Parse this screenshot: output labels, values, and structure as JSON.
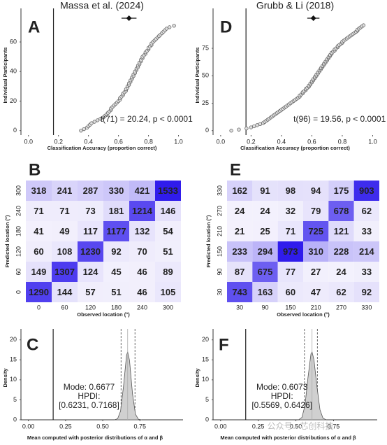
{
  "chart_data": [
    {
      "type": "scatter",
      "title": "Massa et al. (2024)",
      "panel": "A",
      "x_label": "Classification Accuracy (proportion correct)",
      "y_label": "Individual Participants",
      "annotation": "t(71) = 20.24, p < 0.0001",
      "x": [
        0.35,
        0.37,
        0.39,
        0.4,
        0.41,
        0.42,
        0.44,
        0.46,
        0.48,
        0.5,
        0.51,
        0.52,
        0.53,
        0.54,
        0.55,
        0.55,
        0.56,
        0.57,
        0.58,
        0.59,
        0.6,
        0.61,
        0.61,
        0.62,
        0.63,
        0.63,
        0.64,
        0.65,
        0.65,
        0.66,
        0.66,
        0.67,
        0.67,
        0.68,
        0.68,
        0.69,
        0.69,
        0.7,
        0.7,
        0.71,
        0.71,
        0.72,
        0.72,
        0.73,
        0.73,
        0.74,
        0.74,
        0.75,
        0.75,
        0.76,
        0.76,
        0.77,
        0.78,
        0.78,
        0.79,
        0.8,
        0.8,
        0.81,
        0.82,
        0.82,
        0.83,
        0.84,
        0.85,
        0.86,
        0.87,
        0.88,
        0.89,
        0.9,
        0.91,
        0.92,
        0.94,
        0.97
      ],
      "values": [
        0,
        1,
        2,
        3,
        4,
        5,
        6,
        7,
        8,
        9,
        10,
        11,
        12,
        13,
        14,
        15,
        16,
        17,
        18,
        19,
        20,
        21,
        22,
        23,
        24,
        25,
        26,
        27,
        28,
        29,
        30,
        31,
        32,
        33,
        34,
        35,
        36,
        37,
        38,
        39,
        40,
        41,
        42,
        43,
        44,
        45,
        46,
        47,
        48,
        49,
        50,
        51,
        52,
        53,
        54,
        55,
        56,
        57,
        58,
        59,
        60,
        61,
        62,
        63,
        64,
        65,
        66,
        67,
        68,
        69,
        70,
        71
      ],
      "mean": 0.67,
      "mean_error": 0.05,
      "chance": 0.1667,
      "xlim": [
        -0.05,
        1.03
      ],
      "ylim": [
        -3,
        78
      ],
      "xticks": [
        {
          "value": 0,
          "label": "0.0"
        },
        0.2,
        0.4,
        0.6,
        0.8,
        {
          "value": 1,
          "label": "1.0"
        }
      ],
      "yticks": [
        0,
        20,
        40,
        60
      ]
    },
    {
      "type": "scatter",
      "title": "Grubb & Li (2018)",
      "panel": "D",
      "x_label": "Classification Accuracy (proportion correct)",
      "y_label": "Individual Participants",
      "annotation": "t(96) = 19.56, p < 0.0001",
      "x": [
        0.07,
        0.12,
        0.17,
        0.2,
        0.22,
        0.24,
        0.26,
        0.28,
        0.29,
        0.3,
        0.31,
        0.32,
        0.33,
        0.34,
        0.35,
        0.36,
        0.37,
        0.38,
        0.39,
        0.4,
        0.41,
        0.42,
        0.43,
        0.44,
        0.45,
        0.46,
        0.47,
        0.48,
        0.49,
        0.5,
        0.51,
        0.52,
        0.52,
        0.53,
        0.54,
        0.54,
        0.55,
        0.56,
        0.56,
        0.57,
        0.58,
        0.58,
        0.59,
        0.59,
        0.6,
        0.6,
        0.61,
        0.61,
        0.62,
        0.62,
        0.63,
        0.63,
        0.64,
        0.64,
        0.65,
        0.65,
        0.66,
        0.66,
        0.67,
        0.67,
        0.68,
        0.68,
        0.69,
        0.69,
        0.7,
        0.7,
        0.71,
        0.71,
        0.72,
        0.72,
        0.73,
        0.73,
        0.74,
        0.75,
        0.75,
        0.76,
        0.77,
        0.77,
        0.78,
        0.79,
        0.8,
        0.8,
        0.81,
        0.82,
        0.83,
        0.84,
        0.85,
        0.86,
        0.87,
        0.88,
        0.89,
        0.9,
        0.9,
        0.91,
        0.92,
        0.93,
        0.94
      ],
      "values": [
        0,
        1,
        2,
        3,
        4,
        5,
        6,
        7,
        8,
        9,
        10,
        11,
        12,
        13,
        14,
        15,
        16,
        17,
        18,
        19,
        20,
        21,
        22,
        23,
        24,
        25,
        26,
        27,
        28,
        29,
        30,
        31,
        32,
        33,
        34,
        35,
        36,
        37,
        38,
        39,
        40,
        41,
        42,
        43,
        44,
        45,
        46,
        47,
        48,
        49,
        50,
        51,
        52,
        53,
        54,
        55,
        56,
        57,
        58,
        59,
        60,
        61,
        62,
        63,
        64,
        65,
        66,
        67,
        68,
        69,
        70,
        71,
        72,
        73,
        74,
        75,
        76,
        77,
        78,
        79,
        80,
        81,
        82,
        83,
        84,
        85,
        86,
        87,
        88,
        89,
        90,
        91,
        92,
        93,
        94,
        95,
        96
      ],
      "mean": 0.61,
      "mean_error": 0.04,
      "chance": 0.1667,
      "xlim": [
        -0.05,
        1.03
      ],
      "ylim": [
        -4,
        105
      ],
      "xticks": [
        {
          "value": 0,
          "label": "0.0"
        },
        0.2,
        0.4,
        0.6,
        0.8,
        {
          "value": 1,
          "label": "1.0"
        }
      ],
      "yticks": [
        0,
        25,
        50,
        75
      ]
    },
    {
      "type": "heatmap",
      "panel": "B",
      "x_label": "Observed location (°)",
      "y_label": "Predicted location (°)",
      "categories": [
        "0",
        "60",
        "120",
        "180",
        "240",
        "300"
      ],
      "y_categories": [
        "0",
        "60",
        "120",
        "180",
        "240",
        "300"
      ],
      "values": [
        [
          1290,
          144,
          57,
          51,
          46,
          105
        ],
        [
          149,
          1307,
          124,
          45,
          46,
          89
        ],
        [
          60,
          108,
          1230,
          92,
          70,
          51
        ],
        [
          41,
          49,
          117,
          1177,
          132,
          54
        ],
        [
          71,
          71,
          73,
          181,
          1214,
          146
        ],
        [
          318,
          241,
          287,
          330,
          421,
          1533
        ]
      ]
    },
    {
      "type": "heatmap",
      "panel": "E",
      "x_label": "Observed location (°)",
      "y_label": "Predicted location (°)",
      "categories": [
        "30",
        "90",
        "150",
        "210",
        "270",
        "330"
      ],
      "y_categories": [
        "30",
        "90",
        "150",
        "210",
        "270",
        "330"
      ],
      "values": [
        [
          743,
          163,
          60,
          47,
          62,
          92
        ],
        [
          87,
          675,
          77,
          27,
          24,
          33
        ],
        [
          233,
          294,
          973,
          310,
          228,
          214
        ],
        [
          21,
          25,
          71,
          725,
          121,
          33
        ],
        [
          24,
          24,
          32,
          79,
          678,
          62
        ],
        [
          162,
          91,
          98,
          94,
          175,
          903
        ]
      ]
    },
    {
      "type": "density",
      "panel": "C",
      "x_label": "Mean computed with posterior distributions of α and β",
      "y_label": "Density",
      "annotation": [
        "Mode: 0.6677",
        "HPDI:",
        "[0.6231, 0.7168]"
      ],
      "x": [
        0.58,
        0.6,
        0.62,
        0.64,
        0.66,
        0.6677,
        0.68,
        0.7,
        0.72,
        0.74,
        0.76
      ],
      "values": [
        0.02,
        0.27,
        2.2,
        8.5,
        16.1,
        17,
        14.9,
        6.6,
        1.4,
        0.14,
        0.01
      ],
      "mode": 0.6677,
      "hpdi": [
        0.6231,
        0.7168
      ],
      "chance": 0.1667,
      "xlim": [
        -0.05,
        1.04
      ],
      "ylim": [
        0,
        21
      ],
      "xticks": [
        {
          "value": 0,
          "label": "0.00"
        },
        0.25,
        {
          "value": 0.5,
          "label": "0.50"
        },
        0.75
      ],
      "yticks": [
        0,
        5,
        10,
        15,
        20
      ]
    },
    {
      "type": "density",
      "panel": "F",
      "x_label": "Mean computed with posterior distributions of α and β",
      "y_label": "Density",
      "annotation": [
        "Mode: 0.6073",
        "HPDI:",
        "[0.5569, 0.6426]"
      ],
      "x": [
        0.52,
        0.54,
        0.56,
        0.58,
        0.6,
        0.6073,
        0.62,
        0.64,
        0.66,
        0.68,
        0.7
      ],
      "values": [
        0.05,
        0.6,
        3.5,
        10.5,
        16.5,
        17,
        15.0,
        8.3,
        2.5,
        0.4,
        0.03
      ],
      "mode": 0.6073,
      "hpdi": [
        0.5569,
        0.6426
      ],
      "chance": 0.1667,
      "xlim": [
        -0.05,
        1.04
      ],
      "ylim": [
        0,
        21
      ],
      "xticks": [
        {
          "value": 0,
          "label": "0.00"
        },
        0.25,
        {
          "value": 0.5,
          "label": "0.50"
        },
        0.75
      ],
      "yticks": [
        0,
        5,
        10,
        15,
        20
      ]
    }
  ],
  "watermark": "公众号 · 芯创科技"
}
